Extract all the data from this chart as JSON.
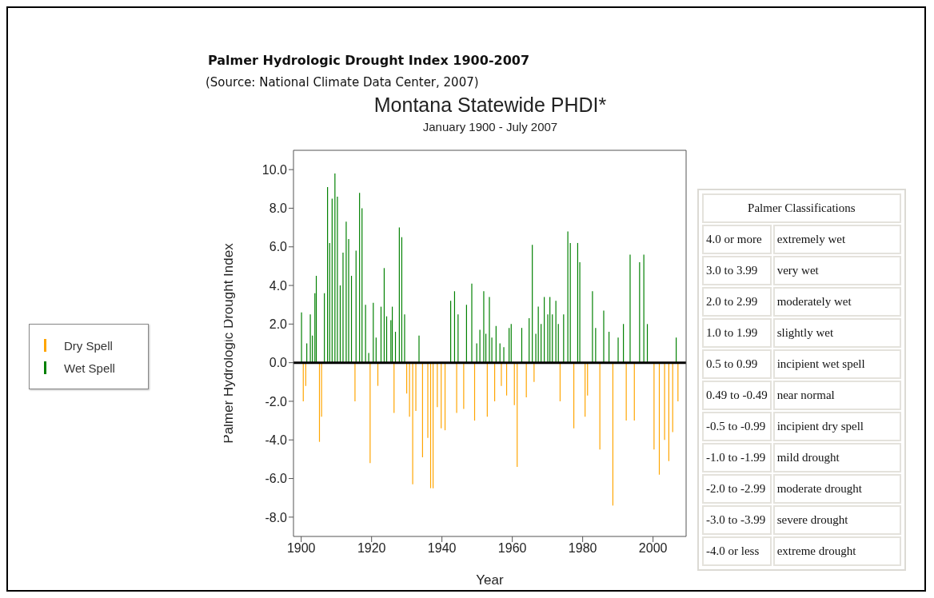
{
  "chart_data": [
    {
      "type": "bar",
      "title": "Montana Statewide PHDI*",
      "subtitle": "January 1900 - July 2007",
      "xlabel": "Year",
      "ylabel": "Palmer Hydrologic Drought Index",
      "annotations": [
        "Palmer Hydrologic Drought Index 1900-2007",
        "(Source: National Climate Data Center, 2007)"
      ],
      "xlim": [
        1897.8,
        2009.4
      ],
      "xticks": [
        1900,
        1920,
        1940,
        1960,
        1980,
        2000
      ],
      "ylim": [
        -9,
        11
      ],
      "yticks": [
        {
          "value": -8,
          "label": "-8.0"
        },
        {
          "value": -6,
          "label": "-6.0"
        },
        {
          "value": -4,
          "label": "-4.0"
        },
        {
          "value": -2,
          "label": "-2.0"
        },
        {
          "value": 0,
          "label": "0.0"
        },
        {
          "value": 2,
          "label": "2.0"
        },
        {
          "value": 4,
          "label": "4.0"
        },
        {
          "value": 6,
          "label": "6.0"
        },
        {
          "value": 8,
          "label": "8.0"
        },
        {
          "value": 10,
          "label": "10.0"
        }
      ],
      "grid": false,
      "legend": "left",
      "ref_lines": [
        {
          "axis": "y",
          "value": 0,
          "color": "#000000"
        }
      ],
      "series": [
        {
          "name": "Dry Spell",
          "color": "#ffa500",
          "x": [
            1900.6,
            1901.3,
            1905.2,
            1905.8,
            1915.3,
            1919.6,
            1921.8,
            1926.4,
            1930.0,
            1930.8,
            1931.7,
            1932.6,
            1934.5,
            1936.0,
            1936.8,
            1937.5,
            1938.7,
            1939.8,
            1940.9,
            1944.2,
            1946.2,
            1949.3,
            1952.9,
            1955.0,
            1956.9,
            1958.4,
            1960.6,
            1961.4,
            1964.0,
            1966.2,
            1973.6,
            1977.5,
            1980.7,
            1981.4,
            1984.9,
            1988.6,
            1992.4,
            1994.7,
            2000.3,
            2001.8,
            2003.3,
            2004.5,
            2005.6,
            2007.1
          ],
          "values": [
            -2.0,
            -1.2,
            -4.1,
            -2.8,
            -2.0,
            -5.2,
            -1.2,
            -2.6,
            -1.6,
            -2.8,
            -6.3,
            -2.5,
            -4.9,
            -3.9,
            -6.5,
            -6.5,
            -2.3,
            -3.4,
            -3.5,
            -2.6,
            -2.4,
            -3.0,
            -2.8,
            -2.0,
            -1.2,
            -1.7,
            -2.2,
            -5.4,
            -1.8,
            -1.0,
            -2.0,
            -3.4,
            -2.8,
            -1.7,
            -4.5,
            -7.4,
            -3.0,
            -3.0,
            -4.5,
            -5.8,
            -4.0,
            -5.1,
            -3.6,
            -2.0
          ]
        },
        {
          "name": "Wet Spell",
          "color": "#008000",
          "x": [
            1900.1,
            1901.6,
            1902.6,
            1903.2,
            1903.9,
            1904.3,
            1906.6,
            1907.5,
            1908.1,
            1908.8,
            1909.6,
            1910.3,
            1911.1,
            1911.9,
            1912.8,
            1913.5,
            1914.3,
            1915.6,
            1916.6,
            1917.3,
            1918.3,
            1919.2,
            1920.5,
            1921.3,
            1922.7,
            1923.6,
            1924.3,
            1925.5,
            1925.9,
            1926.8,
            1927.9,
            1928.6,
            1929.4,
            1933.5,
            1942.5,
            1943.6,
            1944.6,
            1947.0,
            1948.5,
            1949.9,
            1950.8,
            1951.9,
            1952.5,
            1953.5,
            1954.2,
            1955.4,
            1956.5,
            1957.6,
            1959.1,
            1959.7,
            1962.7,
            1964.8,
            1965.7,
            1966.7,
            1967.4,
            1968.2,
            1969.1,
            1970.1,
            1970.7,
            1971.4,
            1972.4,
            1973.1,
            1974.6,
            1975.8,
            1976.5,
            1978.6,
            1979.2,
            1982.8,
            1983.7,
            1986.0,
            1987.5,
            1990.1,
            1991.6,
            1993.5,
            1996.2,
            1997.4,
            1998.4,
            2006.6
          ],
          "values": [
            2.6,
            1.0,
            2.5,
            1.4,
            3.6,
            4.5,
            3.6,
            9.1,
            6.2,
            8.5,
            9.8,
            8.6,
            4.0,
            5.7,
            7.3,
            6.4,
            4.5,
            5.8,
            8.8,
            8.0,
            3.0,
            0.5,
            3.1,
            1.3,
            2.9,
            4.9,
            2.4,
            2.2,
            2.9,
            1.6,
            7.0,
            6.5,
            2.5,
            1.4,
            3.2,
            3.7,
            2.5,
            3.0,
            4.1,
            1.0,
            1.7,
            3.7,
            1.5,
            3.4,
            1.3,
            1.9,
            1.0,
            0.8,
            1.8,
            2.0,
            1.8,
            2.3,
            6.1,
            1.5,
            2.9,
            2.0,
            3.4,
            2.5,
            3.4,
            2.5,
            3.2,
            2.0,
            2.5,
            6.8,
            6.2,
            6.2,
            5.2,
            3.7,
            1.8,
            2.7,
            1.6,
            1.3,
            2.0,
            5.6,
            5.2,
            5.6,
            2.0,
            1.3
          ]
        }
      ]
    },
    {
      "type": "other",
      "title": "Palmer Classifications",
      "categories": [
        "4.0 or more",
        "3.0 to 3.99",
        "2.0 to 2.99",
        "1.0 to 1.99",
        "0.5 to 0.99",
        "0.49 to -0.49",
        "-0.5 to -0.99",
        "-1.0 to -1.99",
        "-2.0 to -2.99",
        "-3.0 to -3.99",
        "-4.0 or less"
      ],
      "annotations": [
        "extremely wet",
        "very wet",
        "moderately wet",
        "slightly wet",
        "incipient wet spell",
        "near normal",
        "incipient dry spell",
        "mild drought",
        "moderate drought",
        "severe drought",
        "extreme drought"
      ]
    }
  ]
}
